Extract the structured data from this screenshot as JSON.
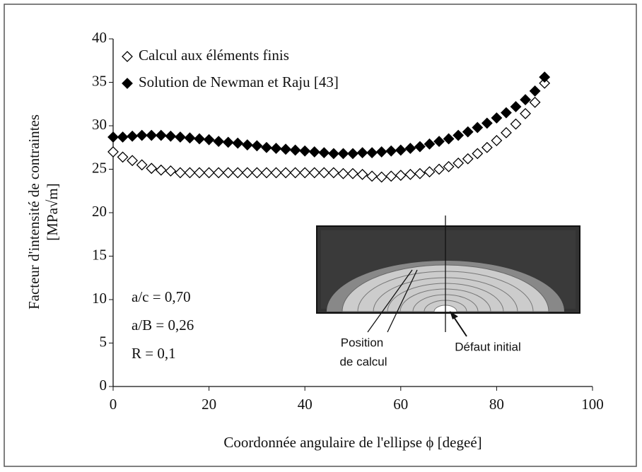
{
  "chart_data": {
    "type": "scatter",
    "xlabel": "Coordonnée angulaire de l'ellipse ϕ [degeé]",
    "ylabel": [
      "Facteur d'intensité de contraintes",
      "[MPa√m]"
    ],
    "xlim": [
      0,
      100
    ],
    "xticks": [
      0,
      20,
      40,
      60,
      80,
      100
    ],
    "ylim": [
      0,
      40
    ],
    "yticks": [
      0,
      5,
      10,
      15,
      20,
      25,
      30,
      35,
      40
    ],
    "x": [
      0,
      2,
      4,
      6,
      8,
      10,
      12,
      14,
      16,
      18,
      20,
      22,
      24,
      26,
      28,
      30,
      32,
      34,
      36,
      38,
      40,
      42,
      44,
      46,
      48,
      50,
      52,
      54,
      56,
      58,
      60,
      62,
      64,
      66,
      68,
      70,
      72,
      74,
      76,
      78,
      80,
      82,
      84,
      86,
      88,
      90
    ],
    "series": [
      {
        "name": "Calcul aux éléments finis",
        "color": "#000000",
        "marker": "open-diamond",
        "values": [
          27,
          26.4,
          26,
          25.5,
          25.1,
          24.9,
          24.8,
          24.6,
          24.6,
          24.6,
          24.6,
          24.6,
          24.6,
          24.6,
          24.6,
          24.6,
          24.6,
          24.6,
          24.6,
          24.6,
          24.6,
          24.6,
          24.6,
          24.6,
          24.5,
          24.5,
          24.4,
          24.2,
          24.1,
          24.2,
          24.3,
          24.4,
          24.5,
          24.7,
          25,
          25.3,
          25.7,
          26.2,
          26.8,
          27.5,
          28.3,
          29.2,
          30.2,
          31.4,
          32.7,
          34.9
        ]
      },
      {
        "name": "Solution de Newman et Raju [43]",
        "color": "#000000",
        "marker": "filled-diamond",
        "values": [
          28.7,
          28.7,
          28.8,
          28.9,
          28.9,
          28.9,
          28.8,
          28.7,
          28.6,
          28.5,
          28.4,
          28.2,
          28.1,
          28,
          27.8,
          27.7,
          27.5,
          27.4,
          27.3,
          27.2,
          27.1,
          27,
          26.9,
          26.8,
          26.8,
          26.8,
          26.9,
          26.9,
          27,
          27.1,
          27.2,
          27.4,
          27.6,
          27.9,
          28.2,
          28.5,
          28.9,
          29.3,
          29.8,
          30.3,
          30.9,
          31.5,
          32.2,
          33,
          34,
          35.6
        ]
      }
    ],
    "annotations": [
      "a/c = 0,70",
      "a/B = 0,26",
      "R = 0,1"
    ],
    "inset_labels": [
      "Position",
      "de calcul",
      "Défaut initial"
    ]
  }
}
